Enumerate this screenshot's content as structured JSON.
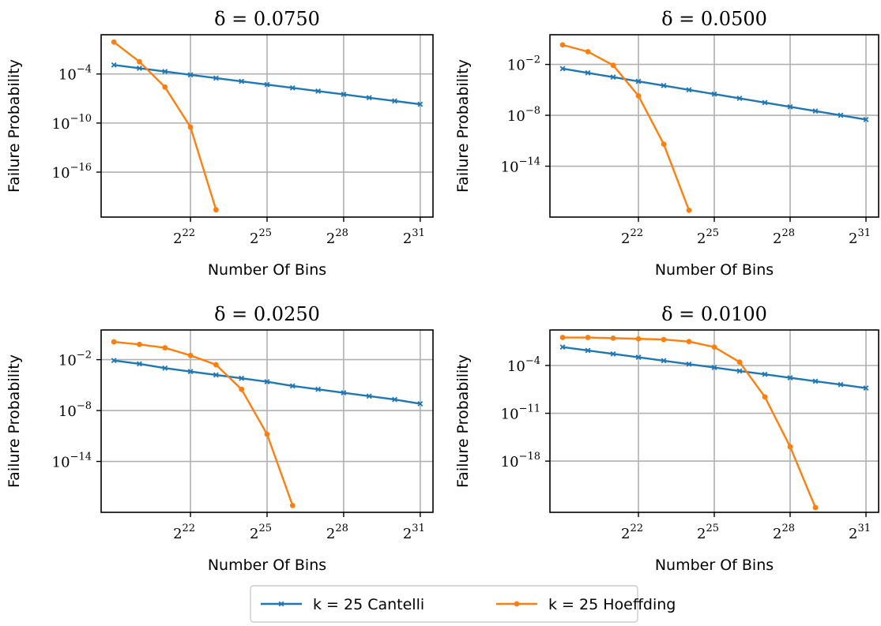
{
  "chart_data": [
    {
      "type": "line",
      "title": "δ = 0.0750",
      "xlabel": "Number Of Bins",
      "ylabel": "Failure Probability",
      "x_scale": "log2",
      "y_scale": "log10",
      "x_ticks": [
        22,
        25,
        28,
        31
      ],
      "y_ticks": [
        -4,
        -10,
        -16
      ],
      "xlim_exp2": [
        18.5,
        31.5
      ],
      "ylim_exp10": [
        -21.5,
        0.8
      ],
      "grid": true,
      "x_exp2": [
        19,
        20,
        21,
        22,
        23,
        24,
        25,
        26,
        27,
        28,
        29,
        30,
        31
      ],
      "series": [
        {
          "name": "k = 25 Cantelli",
          "values_exp10": [
            -2.9,
            -3.3,
            -3.7,
            -4.1,
            -4.5,
            -4.9,
            -5.3,
            -5.7,
            -6.1,
            -6.5,
            -6.9,
            -7.3,
            -7.7
          ]
        },
        {
          "name": "k = 25 Hoeffding",
          "values_exp10": [
            -0.1,
            -2.5,
            -5.6,
            -10.5,
            -20.6
          ]
        }
      ]
    },
    {
      "type": "line",
      "title": "δ = 0.0500",
      "xlabel": "Number Of Bins",
      "ylabel": "Failure Probability",
      "x_scale": "log2",
      "y_scale": "log10",
      "x_ticks": [
        22,
        25,
        28,
        31
      ],
      "y_ticks": [
        -2,
        -8,
        -14
      ],
      "xlim_exp2": [
        18.5,
        31.5
      ],
      "ylim_exp10": [
        -20.0,
        1.5
      ],
      "grid": true,
      "x_exp2": [
        19,
        20,
        21,
        22,
        23,
        24,
        25,
        26,
        27,
        28,
        29,
        30,
        31
      ],
      "series": [
        {
          "name": "k = 25 Cantelli",
          "values_exp10": [
            -2.5,
            -3.0,
            -3.5,
            -4.0,
            -4.5,
            -5.0,
            -5.5,
            -6.0,
            -6.5,
            -7.0,
            -7.5,
            -8.0,
            -8.5
          ]
        },
        {
          "name": "k = 25 Hoeffding",
          "values_exp10": [
            0.3,
            -0.5,
            -2.1,
            -5.7,
            -11.4,
            -19.2
          ]
        }
      ]
    },
    {
      "type": "line",
      "title": "δ = 0.0250",
      "xlabel": "Number Of Bins",
      "ylabel": "Failure Probability",
      "x_scale": "log2",
      "y_scale": "log10",
      "x_ticks": [
        22,
        25,
        28,
        31
      ],
      "y_ticks": [
        -2,
        -8,
        -14
      ],
      "xlim_exp2": [
        18.5,
        31.5
      ],
      "ylim_exp10": [
        -20.0,
        1.5
      ],
      "grid": true,
      "x_exp2": [
        19,
        20,
        21,
        22,
        23,
        24,
        25,
        26,
        27,
        28,
        29,
        30,
        31
      ],
      "series": [
        {
          "name": "k = 25 Cantelli",
          "values_exp10": [
            -2.1,
            -2.5,
            -3.0,
            -3.4,
            -3.8,
            -4.2,
            -4.6,
            -5.1,
            -5.5,
            -5.9,
            -6.3,
            -6.7,
            -7.2
          ]
        },
        {
          "name": "k = 25 Hoeffding",
          "values_exp10": [
            0.1,
            -0.2,
            -0.6,
            -1.5,
            -2.6,
            -5.5,
            -10.8,
            -19.2
          ]
        }
      ]
    },
    {
      "type": "line",
      "title": "δ = 0.0100",
      "xlabel": "Number Of Bins",
      "ylabel": "Failure Probability",
      "x_scale": "log2",
      "y_scale": "log10",
      "x_ticks": [
        22,
        25,
        28,
        31
      ],
      "y_ticks": [
        -4,
        -11,
        -18
      ],
      "xlim_exp2": [
        18.5,
        31.5
      ],
      "ylim_exp10": [
        -25.5,
        1.2
      ],
      "grid": true,
      "x_exp2": [
        19,
        20,
        21,
        22,
        23,
        24,
        25,
        26,
        27,
        28,
        29,
        30,
        31
      ],
      "series": [
        {
          "name": "k = 25 Cantelli",
          "values_exp10": [
            -1.3,
            -1.8,
            -2.3,
            -2.8,
            -3.3,
            -3.8,
            -4.3,
            -4.8,
            -5.3,
            -5.8,
            -6.3,
            -6.8,
            -7.3
          ]
        },
        {
          "name": "k = 25 Hoeffding",
          "values_exp10": [
            0.1,
            0.1,
            0.0,
            -0.1,
            -0.2,
            -0.5,
            -1.3,
            -3.5,
            -8.6,
            -15.9,
            -24.8
          ]
        }
      ]
    }
  ],
  "legend": {
    "placement": "bottom-center",
    "entries": [
      "k = 25 Cantelli",
      "k = 25 Hoeffding"
    ]
  },
  "colors": {
    "cantelli": "#1f77b4",
    "hoeffding": "#ff7f0e",
    "grid": "#b0b0b0"
  }
}
